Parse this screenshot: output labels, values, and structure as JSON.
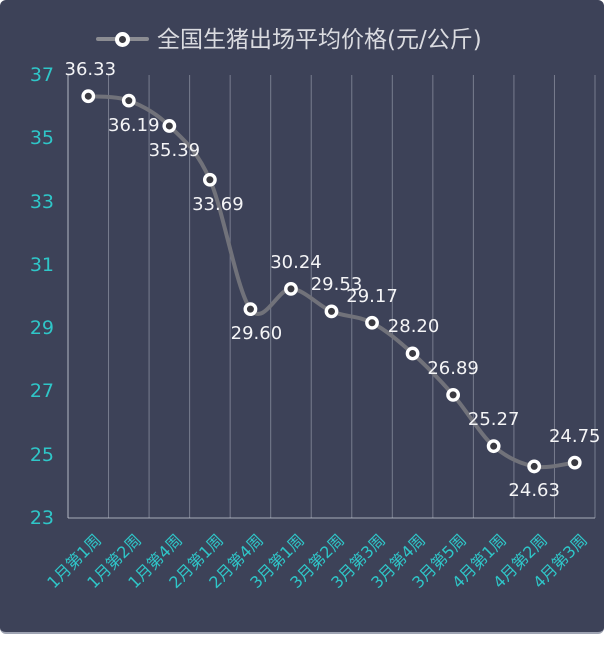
{
  "page": {
    "background": "#FFFFFF"
  },
  "chart": {
    "background": "#3D4258",
    "legend": {
      "label": "全国生猪出场平均价格(元/公斤)"
    },
    "colors": {
      "accent_teal": "#2FC6C8",
      "series_line": "#71727A",
      "legend_line": "#8B8C92",
      "marker_ring": "#FFFFFF",
      "marker_core": "#3A3A41",
      "gridline": "#A9AEBC",
      "axis_line": "#C2C7D1",
      "value_label": "#F4F4F6",
      "legend_text": "#DADBE0"
    }
  },
  "chart_data": {
    "type": "line",
    "title": "全国生猪出场平均价格(元/公斤)",
    "legend_entries": [
      "全国生猪出场平均价格(元/公斤)"
    ],
    "legend_position": "top",
    "smooth": true,
    "unit": "元/公斤",
    "categories": [
      "1月第1周",
      "1月第2周",
      "1月第4周",
      "2月第1周",
      "2月第4周",
      "3月第1周",
      "3月第2周",
      "3月第3周",
      "3月第4周",
      "3月第5周",
      "4月第1周",
      "4月第2周",
      "4月第3周"
    ],
    "values": [
      36.33,
      36.19,
      35.39,
      33.69,
      29.6,
      30.24,
      29.53,
      29.17,
      28.2,
      26.89,
      25.27,
      24.63,
      24.75
    ],
    "point_labels": [
      "36.33",
      "36.19",
      "35.39",
      "33.69",
      "29.60",
      "30.24",
      "29.53",
      "29.17",
      "28.20",
      "26.89",
      "25.27",
      "24.63",
      "24.75"
    ],
    "point_label_position": [
      "above",
      "below",
      "below",
      "below",
      "below",
      "above",
      "above",
      "above",
      "above",
      "above",
      "above",
      "below",
      "above"
    ],
    "point_label_dx": [
      2,
      5,
      5,
      8,
      6,
      5,
      5,
      0,
      1,
      0,
      0,
      0,
      0
    ],
    "xlabel": "",
    "ylabel": "",
    "ylim": [
      23,
      37
    ],
    "y_ticks": [
      37,
      35,
      33,
      31,
      29,
      27,
      25,
      23
    ],
    "grid": "vertical-only"
  }
}
